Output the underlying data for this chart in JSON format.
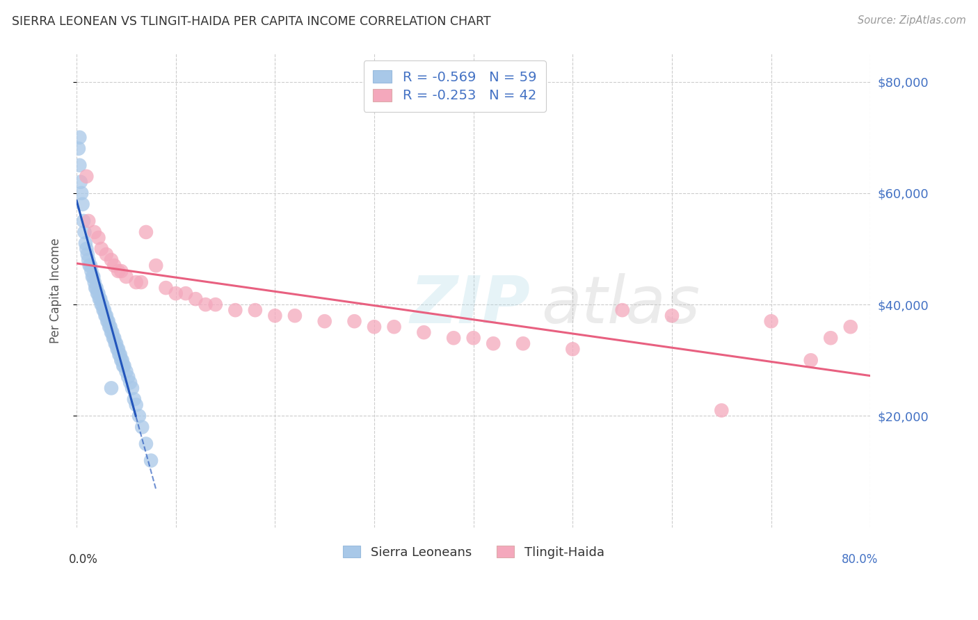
{
  "title": "SIERRA LEONEAN VS TLINGIT-HAIDA PER CAPITA INCOME CORRELATION CHART",
  "source": "Source: ZipAtlas.com",
  "ylabel": "Per Capita Income",
  "ytick_labels": [
    "$20,000",
    "$40,000",
    "$60,000",
    "$80,000"
  ],
  "ytick_values": [
    20000,
    40000,
    60000,
    80000
  ],
  "xlim": [
    0.0,
    0.8
  ],
  "ylim": [
    0,
    85000
  ],
  "blue_color": "#a8c8e8",
  "pink_color": "#f4a8bc",
  "blue_line_color": "#2255bb",
  "pink_line_color": "#e86080",
  "blue_scatter_x": [
    0.002,
    0.003,
    0.004,
    0.005,
    0.006,
    0.007,
    0.008,
    0.009,
    0.01,
    0.011,
    0.012,
    0.013,
    0.014,
    0.015,
    0.016,
    0.017,
    0.018,
    0.019,
    0.02,
    0.021,
    0.022,
    0.023,
    0.024,
    0.025,
    0.026,
    0.027,
    0.028,
    0.029,
    0.03,
    0.031,
    0.032,
    0.033,
    0.034,
    0.035,
    0.036,
    0.037,
    0.038,
    0.039,
    0.04,
    0.041,
    0.042,
    0.043,
    0.044,
    0.045,
    0.046,
    0.047,
    0.048,
    0.05,
    0.052,
    0.054,
    0.056,
    0.058,
    0.06,
    0.063,
    0.066,
    0.07,
    0.075,
    0.003,
    0.035
  ],
  "blue_scatter_y": [
    68000,
    65000,
    62000,
    60000,
    58000,
    55000,
    53000,
    51000,
    50000,
    49000,
    48000,
    47000,
    47000,
    46000,
    45000,
    45000,
    44000,
    43000,
    43000,
    42000,
    42000,
    41000,
    41000,
    40000,
    40000,
    39000,
    39000,
    38000,
    38000,
    37000,
    37000,
    36000,
    36000,
    35000,
    35000,
    34000,
    34000,
    33000,
    33000,
    32000,
    32000,
    31000,
    31000,
    30000,
    30000,
    29000,
    29000,
    28000,
    27000,
    26000,
    25000,
    23000,
    22000,
    20000,
    18000,
    15000,
    12000,
    70000,
    25000
  ],
  "pink_scatter_x": [
    0.01,
    0.012,
    0.018,
    0.022,
    0.025,
    0.03,
    0.035,
    0.038,
    0.042,
    0.045,
    0.05,
    0.06,
    0.065,
    0.07,
    0.08,
    0.09,
    0.1,
    0.11,
    0.12,
    0.13,
    0.14,
    0.16,
    0.18,
    0.2,
    0.22,
    0.25,
    0.28,
    0.3,
    0.32,
    0.35,
    0.38,
    0.4,
    0.42,
    0.45,
    0.5,
    0.55,
    0.6,
    0.65,
    0.7,
    0.74,
    0.76,
    0.78
  ],
  "pink_scatter_y": [
    63000,
    55000,
    53000,
    52000,
    50000,
    49000,
    48000,
    47000,
    46000,
    46000,
    45000,
    44000,
    44000,
    53000,
    47000,
    43000,
    42000,
    42000,
    41000,
    40000,
    40000,
    39000,
    39000,
    38000,
    38000,
    37000,
    37000,
    36000,
    36000,
    35000,
    34000,
    34000,
    33000,
    33000,
    32000,
    39000,
    38000,
    21000,
    37000,
    30000,
    34000,
    36000
  ]
}
